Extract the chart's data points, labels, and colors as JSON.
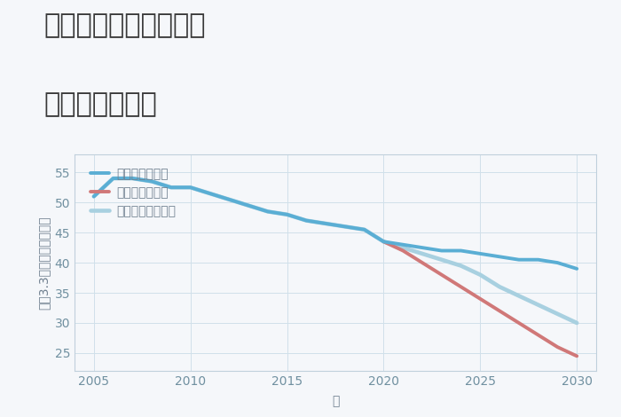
{
  "title_line1": "兵庫県姫路市高尾町の",
  "title_line2": "土地の価格推移",
  "xlabel": "年",
  "ylabel": "平（3.3㎡）単価（万円）",
  "background_color": "#f5f7fa",
  "plot_background": "#f5f7fa",
  "good_scenario": {
    "label": "グッドシナリオ",
    "color": "#5aaed4",
    "x": [
      2005,
      2006,
      2007,
      2008,
      2009,
      2010,
      2011,
      2012,
      2013,
      2014,
      2015,
      2016,
      2017,
      2018,
      2019,
      2020,
      2021,
      2022,
      2023,
      2024,
      2025,
      2026,
      2027,
      2028,
      2029,
      2030
    ],
    "y": [
      51,
      54,
      54,
      53.5,
      52.5,
      52.5,
      51.5,
      50.5,
      49.5,
      48.5,
      48,
      47,
      46.5,
      46,
      45.5,
      43.5,
      43,
      42.5,
      42,
      42,
      41.5,
      41,
      40.5,
      40.5,
      40,
      39
    ]
  },
  "bad_scenario": {
    "label": "バッドシナリオ",
    "color": "#d07878",
    "x": [
      2020,
      2021,
      2022,
      2023,
      2024,
      2025,
      2026,
      2027,
      2028,
      2029,
      2030
    ],
    "y": [
      43.5,
      42,
      40,
      38,
      36,
      34,
      32,
      30,
      28,
      26,
      24.5
    ]
  },
  "normal_scenario": {
    "label": "ノーマルシナリオ",
    "color": "#a8d0e0",
    "x": [
      2005,
      2006,
      2007,
      2008,
      2009,
      2010,
      2011,
      2012,
      2013,
      2014,
      2015,
      2016,
      2017,
      2018,
      2019,
      2020,
      2021,
      2022,
      2023,
      2024,
      2025,
      2026,
      2027,
      2028,
      2029,
      2030
    ],
    "y": [
      51,
      54,
      54,
      53.5,
      52.5,
      52.5,
      51.5,
      50.5,
      49.5,
      48.5,
      48,
      47,
      46.5,
      46,
      45.5,
      43.5,
      42.5,
      41.5,
      40.5,
      39.5,
      38,
      36,
      34.5,
      33,
      31.5,
      30
    ]
  },
  "xlim": [
    2004,
    2031
  ],
  "ylim": [
    22,
    58
  ],
  "yticks": [
    25,
    30,
    35,
    40,
    45,
    50,
    55
  ],
  "xticks": [
    2005,
    2010,
    2015,
    2020,
    2025,
    2030
  ],
  "line_width": 2.8,
  "title_fontsize": 22,
  "axis_label_fontsize": 10,
  "legend_fontsize": 10,
  "tick_fontsize": 10,
  "tick_color": "#7090a0",
  "spine_color": "#c0d0dc",
  "grid_color": "#d0e0ea",
  "label_color": "#708090"
}
